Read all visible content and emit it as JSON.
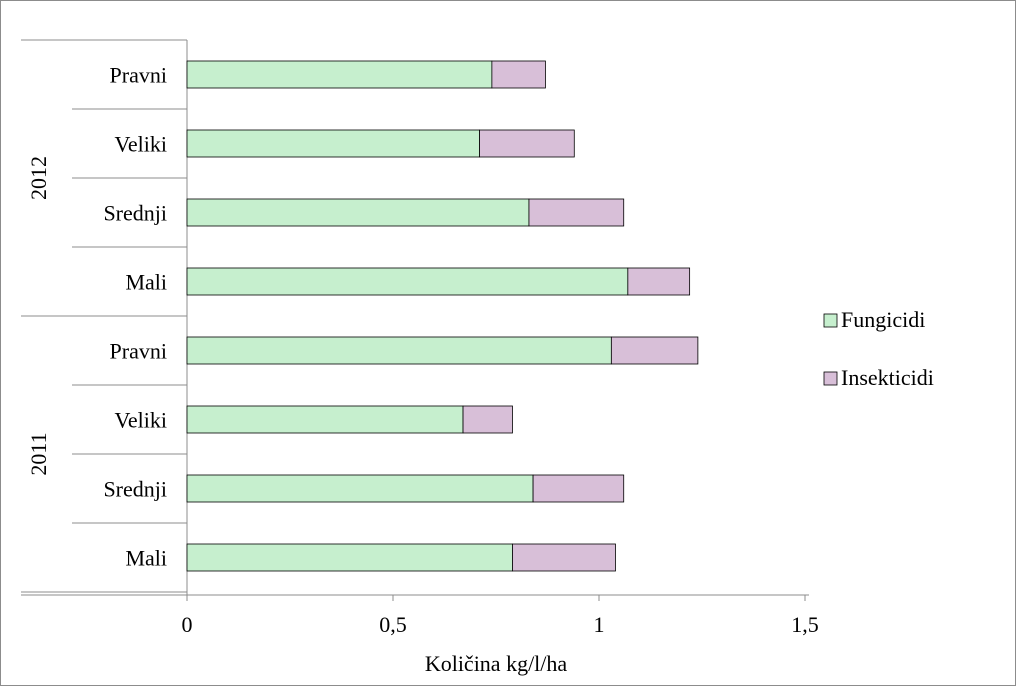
{
  "chart_data": {
    "type": "bar",
    "orientation": "horizontal",
    "stacked": true,
    "groups": [
      {
        "label": "2012",
        "categories": [
          "Pravni",
          "Veliki",
          "Srednji",
          "Mali"
        ]
      },
      {
        "label": "2011",
        "categories": [
          "Pravni",
          "Veliki",
          "Srednji",
          "Mali"
        ]
      }
    ],
    "series": [
      {
        "name": "Fungicidi",
        "color": "#c6efce",
        "values": [
          0.74,
          0.71,
          0.83,
          1.07,
          1.03,
          0.67,
          0.84,
          0.79
        ]
      },
      {
        "name": "Insekticidi",
        "color": "#d8bfd8",
        "values": [
          0.13,
          0.23,
          0.23,
          0.15,
          0.21,
          0.12,
          0.22,
          0.25
        ]
      }
    ],
    "x_ticks": [
      "0",
      "0,5",
      "1",
      "1,5"
    ],
    "x_tick_values": [
      0,
      0.5,
      1,
      1.5
    ],
    "xlim": [
      0,
      1.5
    ],
    "xlabel": "Količina kg/l/ha",
    "grid": false,
    "legend_position": "right"
  }
}
